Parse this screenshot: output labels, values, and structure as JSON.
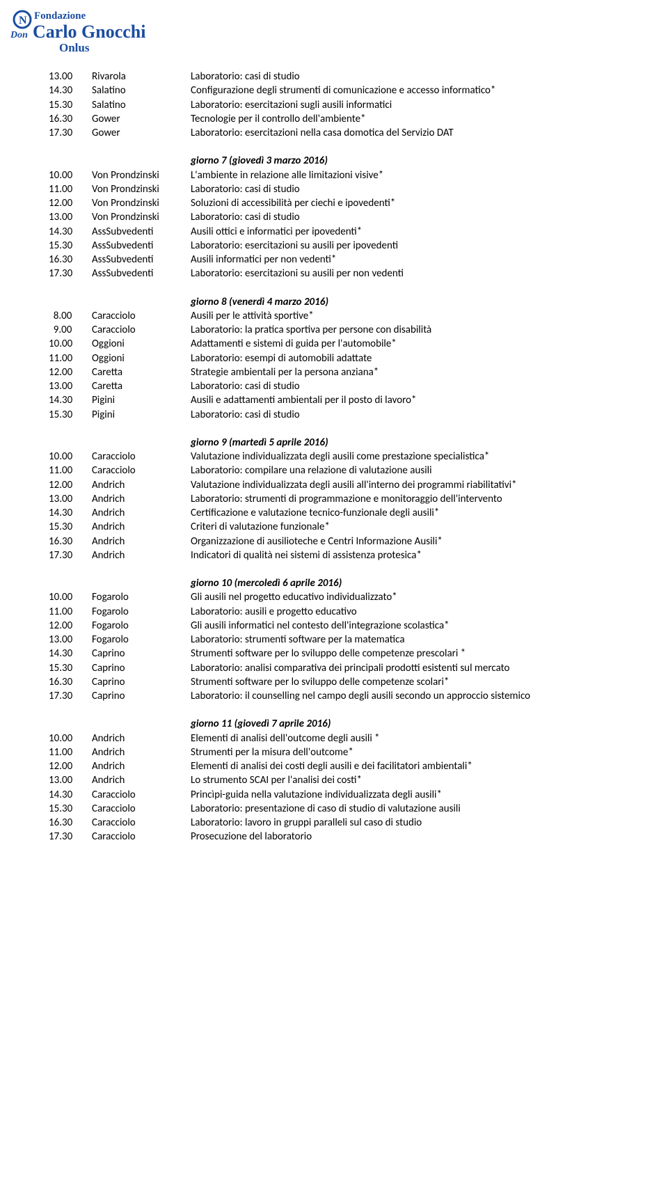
{
  "logo": {
    "top": "Fondazione",
    "mid": "Carlo Gnocchi",
    "don": "Don",
    "bottom": "Onlus",
    "color": "#1a4da0"
  },
  "days": [
    {
      "heading": null,
      "rows": [
        {
          "time": "13.00",
          "speaker": "Rivarola",
          "desc": "Laboratorio: casi di studio"
        },
        {
          "time": "14.30",
          "speaker": "Salatino",
          "desc": "Configurazione degli strumenti di comunicazione e accesso informatico*"
        },
        {
          "time": "15.30",
          "speaker": "Salatino",
          "desc": "Laboratorio: esercitazioni sugli ausili informatici"
        },
        {
          "time": "16.30",
          "speaker": "Gower",
          "desc": "Tecnologie per il controllo dell'ambiente*"
        },
        {
          "time": "17.30",
          "speaker": "Gower",
          "desc": "Laboratorio: esercitazioni nella casa domotica del Servizio DAT"
        }
      ]
    },
    {
      "heading": "giorno 7 (giovedì 3 marzo 2016)",
      "rows": [
        {
          "time": "10.00",
          "speaker": "Von Prondzinski",
          "desc": "L'ambiente in relazione alle limitazioni visive*"
        },
        {
          "time": "11.00",
          "speaker": "Von Prondzinski",
          "desc": "Laboratorio: casi di studio"
        },
        {
          "time": "12.00",
          "speaker": "Von Prondzinski",
          "desc": "Soluzioni di accessibilità per ciechi e ipovedenti*"
        },
        {
          "time": "13.00",
          "speaker": "Von Prondzinski",
          "desc": "Laboratorio: casi di studio"
        },
        {
          "time": "14.30",
          "speaker": "AssSubvedenti",
          "desc": "Ausili ottici e informatici per ipovedenti*"
        },
        {
          "time": "15.30",
          "speaker": "AssSubvedenti",
          "desc": "Laboratorio: esercitazioni su ausili per ipovedenti"
        },
        {
          "time": "16.30",
          "speaker": "AssSubvedenti",
          "desc": "Ausili informatici per non vedenti*"
        },
        {
          "time": "17.30",
          "speaker": "AssSubvedenti",
          "desc": "Laboratorio: esercitazioni su ausili per non vedenti"
        }
      ]
    },
    {
      "heading": "giorno 8 (venerdì 4 marzo 2016)",
      "rows": [
        {
          "time": "  8.00",
          "speaker": "Caracciolo",
          "desc": "Ausili per le attività sportive*"
        },
        {
          "time": "  9.00",
          "speaker": "Caracciolo",
          "desc": "Laboratorio: la pratica sportiva per persone con disabilità"
        },
        {
          "time": "10.00",
          "speaker": "Oggioni",
          "desc": "Adattamenti e sistemi di guida per l'automobile*"
        },
        {
          "time": "11.00",
          "speaker": "Oggioni",
          "desc": "Laboratorio: esempi di automobili adattate"
        },
        {
          "time": "12.00",
          "speaker": "Caretta",
          "desc": "Strategie ambientali per la persona anziana*"
        },
        {
          "time": "13.00",
          "speaker": "Caretta",
          "desc": "Laboratorio: casi di studio"
        },
        {
          "time": "14.30",
          "speaker": "Pigini",
          "desc": "Ausili e adattamenti ambientali per il posto di lavoro*"
        },
        {
          "time": "15.30",
          "speaker": "Pigini",
          "desc": "Laboratorio: casi di studio"
        }
      ]
    },
    {
      "heading": "giorno 9 (martedì 5 aprile 2016)",
      "rows": [
        {
          "time": "10.00",
          "speaker": "Caracciolo",
          "desc": "Valutazione individualizzata degli ausili come prestazione specialistica*"
        },
        {
          "time": "11.00",
          "speaker": "Caracciolo",
          "desc": "Laboratorio: compilare una relazione di valutazione ausili"
        },
        {
          "time": "12.00",
          "speaker": "Andrich",
          "desc": "Valutazione individualizzata degli ausili all'interno dei programmi riabilitativi*"
        },
        {
          "time": "13.00",
          "speaker": "Andrich",
          "desc": "Laboratorio: strumenti di programmazione e monitoraggio dell'intervento"
        },
        {
          "time": "14.30",
          "speaker": "Andrich",
          "desc": "Certificazione e valutazione tecnico-funzionale degli ausili*"
        },
        {
          "time": "15.30",
          "speaker": "Andrich",
          "desc": "Criteri di valutazione funzionale*"
        },
        {
          "time": "16.30",
          "speaker": "Andrich",
          "desc": "Organizzazione di ausilioteche e Centri Informazione Ausili*"
        },
        {
          "time": "17.30",
          "speaker": "Andrich",
          "desc": "Indicatori di qualità nei sistemi di assistenza protesica*"
        }
      ]
    },
    {
      "heading": "giorno 10 (mercoledì 6 aprile 2016)",
      "rows": [
        {
          "time": "10.00",
          "speaker": "Fogarolo",
          "desc": "Gli ausili nel progetto educativo individualizzato*"
        },
        {
          "time": "11.00",
          "speaker": "Fogarolo",
          "desc": "Laboratorio: ausili e progetto educativo"
        },
        {
          "time": "12.00",
          "speaker": "Fogarolo",
          "desc": "Gli ausili informatici nel contesto dell'integrazione scolastica*"
        },
        {
          "time": "13.00",
          "speaker": "Fogarolo",
          "desc": "Laboratorio: strumenti software per la matematica"
        },
        {
          "time": "14.30",
          "speaker": "Caprino",
          "desc": "Strumenti software per lo sviluppo delle competenze prescolari *"
        },
        {
          "time": "15.30",
          "speaker": "Caprino",
          "desc": "Laboratorio: analisi comparativa dei principali prodotti esistenti sul mercato"
        },
        {
          "time": "16.30",
          "speaker": "Caprino",
          "desc": "Strumenti software per lo sviluppo delle competenze scolari*"
        },
        {
          "time": "17.30",
          "speaker": "Caprino",
          "desc": "Laboratorio: il counselling nel campo degli ausili secondo un approccio sistemico"
        }
      ]
    },
    {
      "heading": "giorno 11 (giovedì 7 aprile 2016)",
      "rows": [
        {
          "time": "10.00",
          "speaker": "Andrich",
          "desc": "Elementi di analisi dell'outcome degli ausili *"
        },
        {
          "time": "11.00",
          "speaker": "Andrich",
          "desc": "Strumenti per la misura dell'outcome*"
        },
        {
          "time": "12.00",
          "speaker": "Andrich",
          "desc": "Elementi di analisi dei costi degli ausili e dei facilitatori ambientali*"
        },
        {
          "time": "13.00",
          "speaker": "Andrich",
          "desc": "Lo strumento SCAI per l'analisi dei costi*"
        },
        {
          "time": "14.30",
          "speaker": "Caracciolo",
          "desc": "Princìpi-guida nella valutazione individualizzata degli ausili*"
        },
        {
          "time": "15.30",
          "speaker": "Caracciolo",
          "desc": "Laboratorio: presentazione di caso di studio di valutazione ausili"
        },
        {
          "time": "16.30",
          "speaker": "Caracciolo",
          "desc": "Laboratorio: lavoro in gruppi paralleli sul caso di studio"
        },
        {
          "time": "17.30",
          "speaker": "Caracciolo",
          "desc": "Prosecuzione del laboratorio"
        }
      ]
    }
  ]
}
